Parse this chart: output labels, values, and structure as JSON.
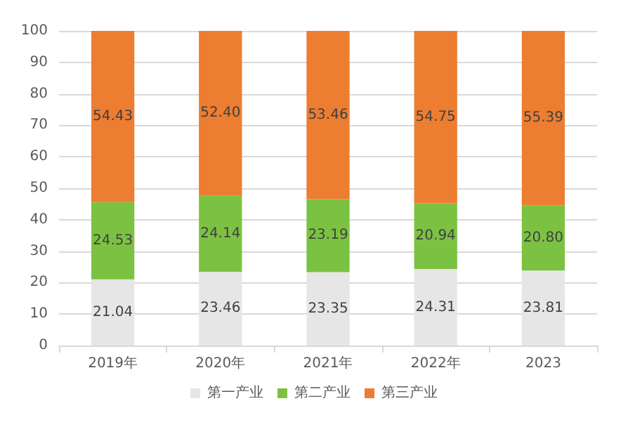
{
  "chart_data": {
    "type": "bar",
    "stacked": true,
    "categories": [
      "2019年",
      "2020年",
      "2021年",
      "2022年",
      "2023"
    ],
    "series": [
      {
        "name": "第一产业",
        "color": "#e7e6e6",
        "values": [
          21.04,
          23.46,
          23.35,
          24.31,
          23.81
        ],
        "value_labels": [
          "21.04",
          "23.46",
          "23.35",
          "24.31",
          "23.81"
        ]
      },
      {
        "name": "第二产业",
        "color": "#7cc242",
        "values": [
          24.53,
          24.14,
          23.19,
          20.94,
          20.8
        ],
        "value_labels": [
          "24.53",
          "24.14",
          "23.19",
          "20.94",
          "20.80"
        ]
      },
      {
        "name": "第三产业",
        "color": "#ed7d31",
        "values": [
          54.43,
          52.4,
          53.46,
          54.75,
          55.39
        ],
        "value_labels": [
          "54.43",
          "52.40",
          "53.46",
          "54.75",
          "55.39"
        ]
      }
    ],
    "ylim": [
      0,
      100
    ],
    "yticks": [
      0,
      10,
      20,
      30,
      40,
      50,
      60,
      70,
      80,
      90,
      100
    ],
    "grid": "y",
    "legend": "bottom"
  }
}
